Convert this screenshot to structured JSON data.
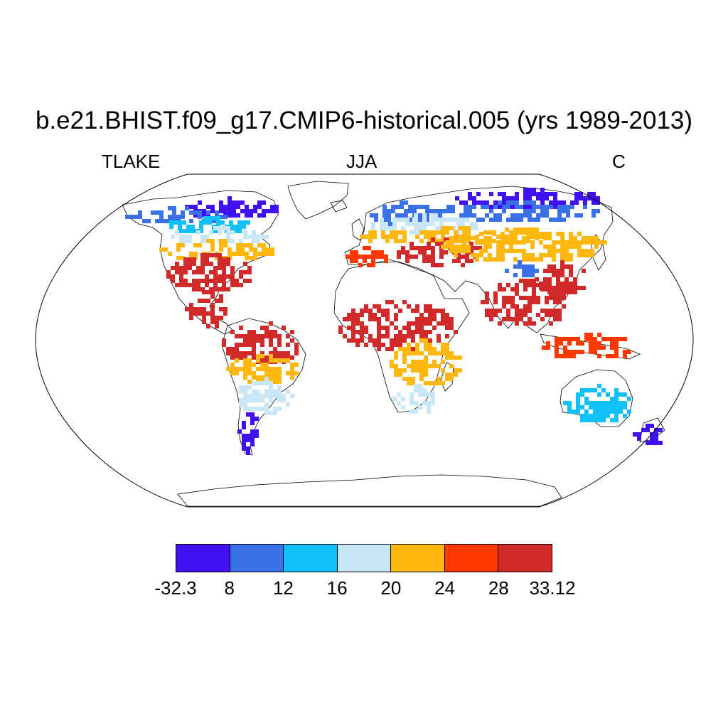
{
  "chart_data": {
    "type": "heatmap",
    "title": "b.e21.BHIST.f09_g17.CMIP6-historical.005 (yrs 1989-2013)",
    "variable": "TLAKE",
    "season": "JJA",
    "units": "C",
    "projection": "Robinson world map",
    "colorbar": {
      "labels": [
        "-32.3",
        "8",
        "12",
        "16",
        "20",
        "24",
        "28",
        "33.12"
      ],
      "colors": [
        "#4010f0",
        "#3a70e8",
        "#10c0f8",
        "#c8e6f6",
        "#ffb810",
        "#ff3800",
        "#d22a2a"
      ]
    },
    "regions": [
      {
        "name": "northern-canada-alaska",
        "color": "#4010f0"
      },
      {
        "name": "canada-boreal",
        "color": "#3a70e8"
      },
      {
        "name": "canada-south",
        "color": "#10c0f8"
      },
      {
        "name": "canada-prairies",
        "color": "#c8e6f6"
      },
      {
        "name": "great-lakes",
        "color": "#ffb810"
      },
      {
        "name": "eastern-us",
        "color": "#d22a2a"
      },
      {
        "name": "central-america",
        "color": "#d22a2a"
      },
      {
        "name": "amazon",
        "color": "#d22a2a"
      },
      {
        "name": "brazil-south",
        "color": "#ffb810"
      },
      {
        "name": "argentina",
        "color": "#c8e6f6"
      },
      {
        "name": "patagonia",
        "color": "#4010f0"
      },
      {
        "name": "scandinavia",
        "color": "#3a70e8"
      },
      {
        "name": "europe-central",
        "color": "#c8e6f6"
      },
      {
        "name": "europe-south",
        "color": "#ffb810"
      },
      {
        "name": "iberia",
        "color": "#ff3800"
      },
      {
        "name": "caspian",
        "color": "#d22a2a"
      },
      {
        "name": "siberia-north",
        "color": "#4010f0"
      },
      {
        "name": "siberia",
        "color": "#3a70e8"
      },
      {
        "name": "central-asia",
        "color": "#ffb810"
      },
      {
        "name": "tibet",
        "color": "#3a70e8"
      },
      {
        "name": "china-east",
        "color": "#d22a2a"
      },
      {
        "name": "india",
        "color": "#d22a2a"
      },
      {
        "name": "sahel",
        "color": "#d22a2a"
      },
      {
        "name": "east-africa",
        "color": "#ffb810"
      },
      {
        "name": "southern-africa",
        "color": "#c8e6f6"
      },
      {
        "name": "indonesia",
        "color": "#ff3800"
      },
      {
        "name": "australia-south",
        "color": "#10c0f8"
      },
      {
        "name": "new-zealand",
        "color": "#4010f0"
      }
    ]
  }
}
